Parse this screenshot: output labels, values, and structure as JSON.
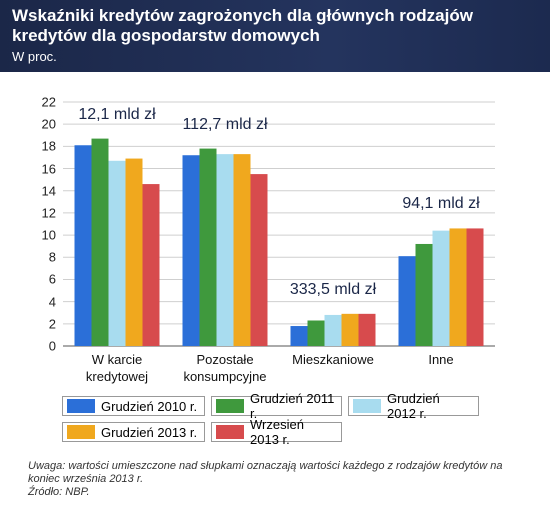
{
  "chart_data": {
    "type": "bar",
    "title": "Wskaźniki kredytów zagrożonych dla głównych rodzajów kredytów dla gospodarstw domowych",
    "subtitle": "W proc.",
    "categories": [
      "W karcie kredytowej",
      "Pozostałe konsumpcyjne",
      "Mieszkaniowe",
      "Inne"
    ],
    "annotations": [
      "12,1 mld zł",
      "112,7 mld zł",
      "333,5 mld zł",
      "94,1 mld zł"
    ],
    "series": [
      {
        "name": "Grudzień 2010 r.",
        "color": "#2b6fd8",
        "values": [
          18.1,
          17.2,
          1.8,
          8.1
        ]
      },
      {
        "name": "Grudzień 2011 r.",
        "color": "#3f993d",
        "values": [
          18.7,
          17.8,
          2.3,
          9.2
        ]
      },
      {
        "name": "Grudzień 2012 r.",
        "color": "#a8dcef",
        "values": [
          16.7,
          17.3,
          2.8,
          10.4
        ]
      },
      {
        "name": "Grudzień 2013 r.",
        "color": "#f0a81e",
        "values": [
          16.9,
          17.3,
          2.9,
          10.6
        ]
      },
      {
        "name": "Wrzesień 2013 r.",
        "color": "#d74b4d",
        "values": [
          14.6,
          15.5,
          2.9,
          10.6
        ]
      }
    ],
    "ylim": [
      0,
      22
    ],
    "yticks": [
      0,
      2,
      4,
      6,
      8,
      10,
      12,
      14,
      16,
      18,
      20,
      22
    ],
    "grid": true,
    "note": "Uwaga: wartości umieszczone nad słupkami oznaczają wartości każdego z rodzajów kredytów na koniec września 2013 r.",
    "source": "Źródło: NBP."
  }
}
